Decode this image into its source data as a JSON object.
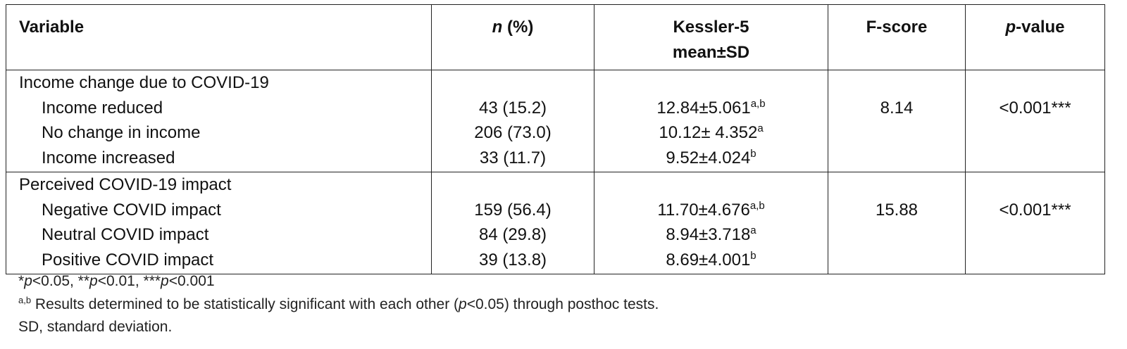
{
  "header": {
    "variable": "Variable",
    "n": {
      "italic": "n",
      "text": " (%)"
    },
    "kessler": [
      "Kessler-5",
      "mean±SD"
    ],
    "f_score": "F-score",
    "p_value": {
      "italic": "p",
      "text": "-value"
    }
  },
  "groups": [
    {
      "label": "Income change due to COVID-19",
      "f_score": "8.14",
      "p_value": "<0.001***",
      "rows": [
        {
          "variable": "Income reduced",
          "n": "43 (15.2)",
          "mean": "12.84±5.061",
          "sup": "a,b"
        },
        {
          "variable": "No change in income",
          "n": "206 (73.0)",
          "mean": "10.12± 4.352",
          "sup": "a"
        },
        {
          "variable": "Income increased",
          "n": "33 (11.7)",
          "mean": "9.52±4.024",
          "sup": "b"
        }
      ]
    },
    {
      "label": "Perceived COVID-19 impact",
      "f_score": "15.88",
      "p_value": "<0.001***",
      "rows": [
        {
          "variable": "Negative COVID impact",
          "n": "159 (56.4)",
          "mean": "11.70±4.676",
          "sup": "a,b"
        },
        {
          "variable": "Neutral COVID impact",
          "n": "84 (29.8)",
          "mean": "8.94±3.718",
          "sup": "a"
        },
        {
          "variable": "Positive COVID impact",
          "n": "39 (13.8)",
          "mean": "8.69±4.001",
          "sup": "b"
        }
      ]
    }
  ],
  "footnotes": [
    {
      "parts": [
        "*",
        "p",
        "<0.05, **",
        "p",
        "<0.01, ***",
        "p",
        "<0.001"
      ]
    },
    {
      "sup": "a,b",
      "parts": [
        " Results determined to be statistically significant with each other (",
        "p",
        "<0.05) through posthoc tests."
      ]
    },
    {
      "parts": [
        "SD, standard deviation."
      ]
    }
  ]
}
